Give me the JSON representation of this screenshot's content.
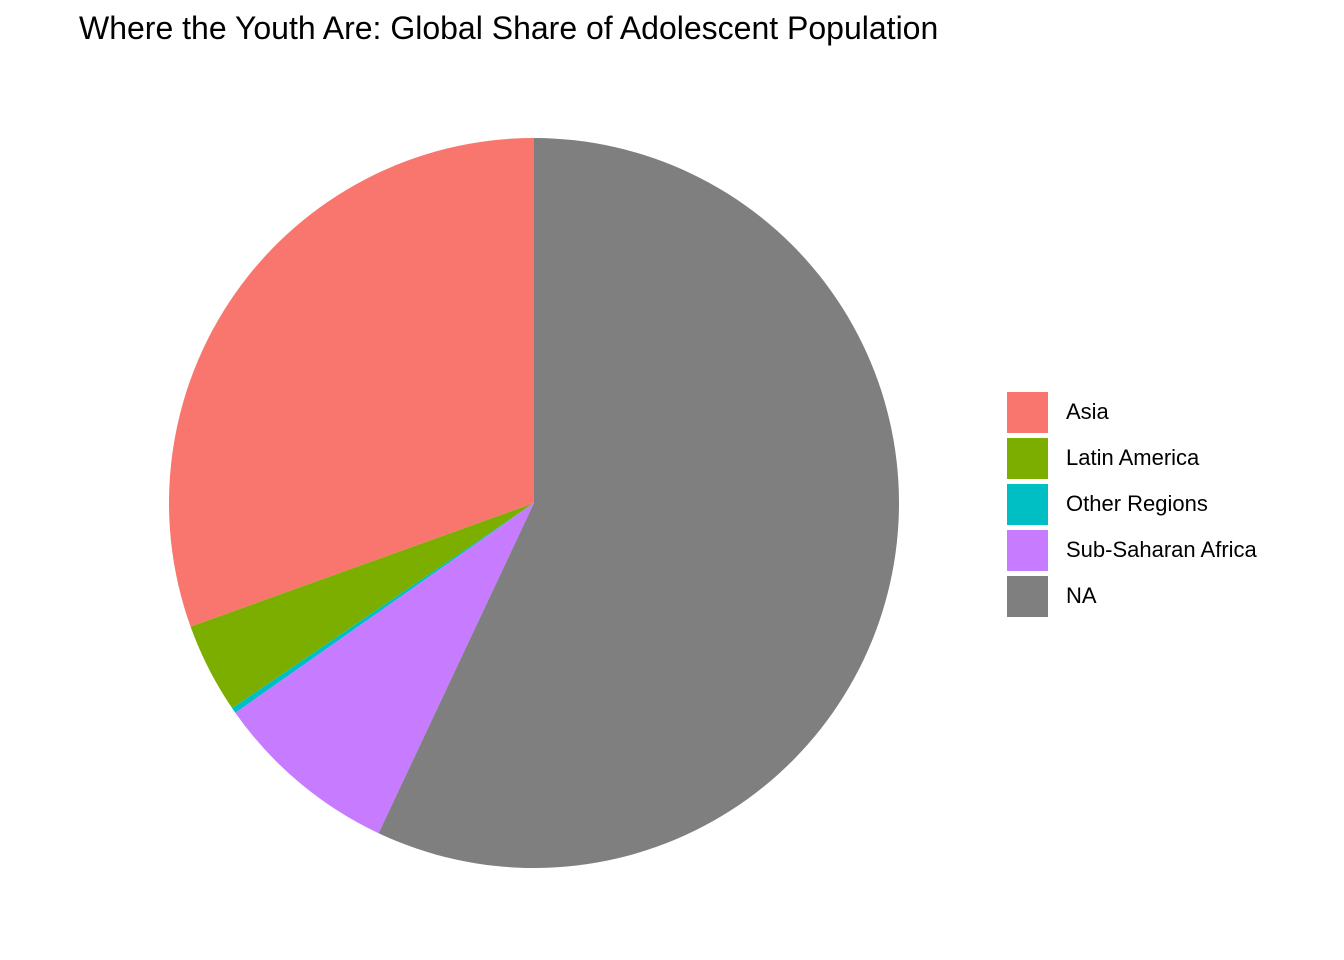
{
  "chart_data": {
    "type": "pie",
    "title": "Where the Youth Are: Global Share of Adolescent Population",
    "direction": "counterclockwise from 12 o'clock",
    "slices": [
      {
        "label": "Asia",
        "value": 30.5,
        "color": "#F8766D"
      },
      {
        "label": "Latin America",
        "value": 4.0,
        "color": "#7CAE00"
      },
      {
        "label": "Other Regions",
        "value": 0.25,
        "color": "#00BFC4"
      },
      {
        "label": "Sub-Saharan Africa",
        "value": 8.25,
        "color": "#C77CFF"
      },
      {
        "label": "NA",
        "value": 57.0,
        "color": "#7F7F7F"
      }
    ],
    "legend_position": "right"
  }
}
